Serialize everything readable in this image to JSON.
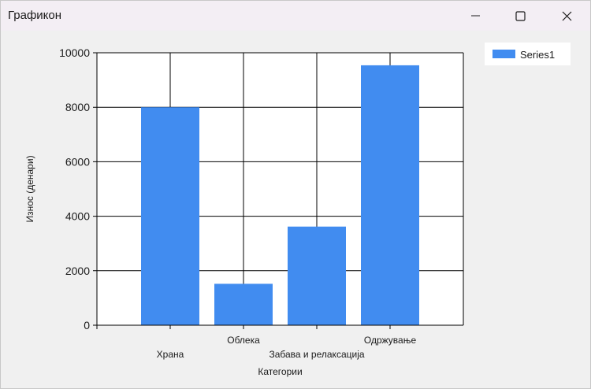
{
  "window": {
    "title": "Графикон",
    "buttons": {
      "minimize": "minimize-icon",
      "maximize": "maximize-icon",
      "close": "close-icon"
    }
  },
  "colors": {
    "bar": "#418CF0",
    "titlebar": "#F3EEF4",
    "client": "#F0F0F0",
    "plot_bg": "#FFFFFF",
    "grid": "#000000"
  },
  "chart_data": {
    "type": "bar",
    "categories": [
      "Храна",
      "Облека",
      "Забава и релаксација",
      "Одржување"
    ],
    "series": [
      {
        "name": "Series1",
        "values": [
          8000,
          1520,
          3620,
          9540
        ]
      }
    ],
    "xlabel": "Категории",
    "ylabel": "Износ (денари)",
    "ylim": [
      0,
      10000
    ],
    "yticks": [
      0,
      2000,
      4000,
      6000,
      8000,
      10000
    ],
    "grid": true,
    "legend": "top-right"
  }
}
